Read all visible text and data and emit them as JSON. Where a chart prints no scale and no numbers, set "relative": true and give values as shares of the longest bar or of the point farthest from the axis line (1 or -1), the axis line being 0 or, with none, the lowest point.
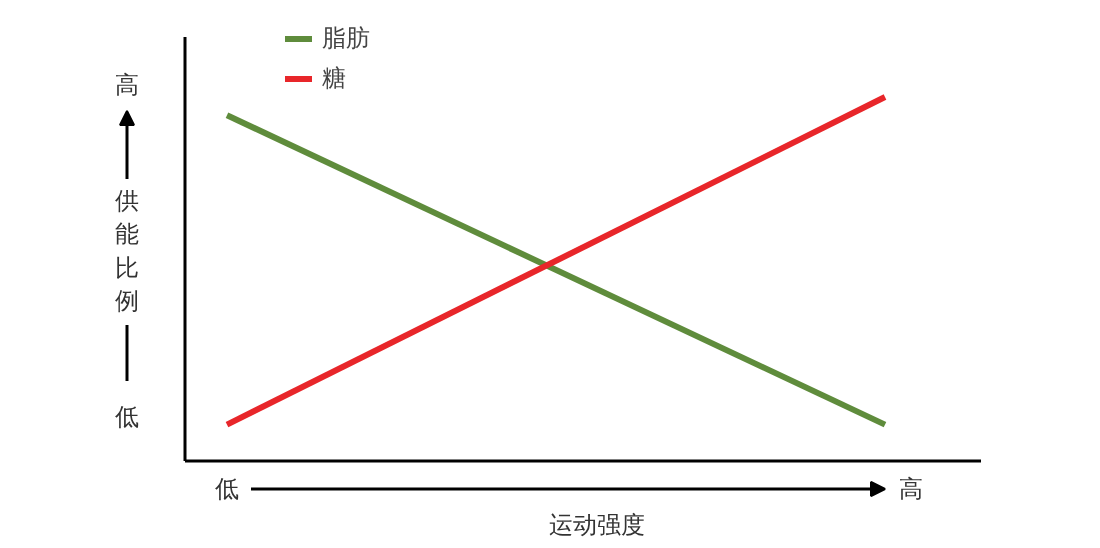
{
  "chart_data": {
    "type": "line",
    "relative": true,
    "xlabel": "运动强度",
    "ylabel": "供能比例",
    "categories": [
      null,
      null
    ],
    "series": [
      {
        "name": "脂肪",
        "color": "#5f8c3c",
        "values": [
          0.95,
          0.1
        ]
      },
      {
        "name": "糖",
        "color": "#e8262a",
        "values": [
          0.1,
          1
        ]
      }
    ],
    "annotations": [
      "高",
      "低",
      "低",
      "高"
    ],
    "legend": "top left",
    "grid": false,
    "marker": "none",
    "line_style": "solid"
  }
}
